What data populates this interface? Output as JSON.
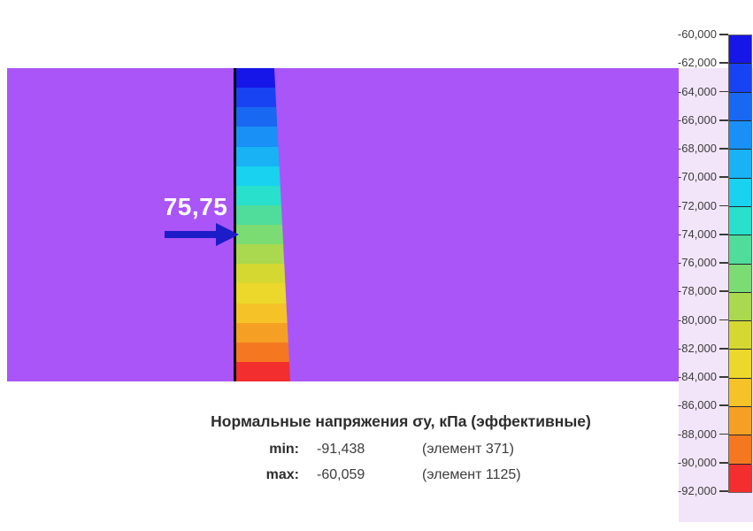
{
  "colors": {
    "background": "#ffffff",
    "field": "#aa55f7",
    "legend_panel": "#f2e5f9",
    "arrow": "#1c1cc8",
    "wall_outline": "#000000",
    "text": "#3c3c3c",
    "title_text": "#2d2d2d",
    "annotation_text": "#ffffff",
    "tick": "#3a3a3a",
    "palette": [
      "#1616e8",
      "#1843f2",
      "#1868f2",
      "#1890f5",
      "#18b2f5",
      "#18d2f0",
      "#28e0cc",
      "#50dc9a",
      "#7cdc74",
      "#aad84e",
      "#d6d832",
      "#ecd82a",
      "#f5c228",
      "#f5a024",
      "#f57820",
      "#f22e2e"
    ]
  },
  "field": {
    "annotation_label": "75,75"
  },
  "legend": {
    "tick_labels": [
      "-60,000",
      "-62,000",
      "-64,000",
      "-66,000",
      "-68,000",
      "-70,000",
      "-72,000",
      "-74,000",
      "-76,000",
      "-78,000",
      "-80,000",
      "-82,000",
      "-84,000",
      "-86,000",
      "-88,000",
      "-90,000",
      "-92,000"
    ]
  },
  "caption": {
    "title": "Нормальные напряжения σy, кПа (эффективные)",
    "min_label": "min:",
    "min_value": "-91,438",
    "min_element": "(элемент 371)",
    "max_label": "max:",
    "max_value": "-60,059",
    "max_element": "(элемент 1125)"
  },
  "chart_data": {
    "type": "heatmap",
    "title": "Нормальные напряжения σy, кПа (эффективные)",
    "ylabel": "",
    "xlabel": "",
    "colorbar_range": [
      -92000,
      -60000
    ],
    "colorbar_step": 2000,
    "colorbar_tick_values": [
      -60000,
      -62000,
      -64000,
      -66000,
      -68000,
      -70000,
      -72000,
      -74000,
      -76000,
      -78000,
      -80000,
      -82000,
      -84000,
      -86000,
      -88000,
      -90000,
      -92000
    ],
    "min": {
      "value": -91438,
      "element": 371
    },
    "max": {
      "value": -60059,
      "element": 1125
    },
    "annotation": {
      "label": "75,75",
      "description": "arrow pointing at wall stress band"
    },
    "legend_position": "right",
    "grid": false
  }
}
